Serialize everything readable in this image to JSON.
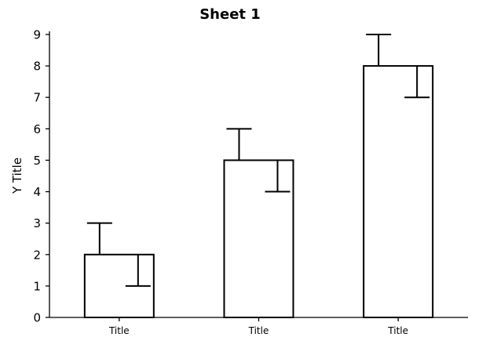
{
  "chart_data": {
    "type": "bar",
    "title": "Sheet 1",
    "xlabel": "",
    "ylabel": "Y Title",
    "categories": [
      "Title",
      "Title",
      "Title"
    ],
    "values": [
      2,
      5,
      8
    ],
    "error_upper": [
      3,
      6,
      9
    ],
    "error_lower": [
      1,
      4,
      7
    ],
    "ylim": [
      0,
      9
    ],
    "yticks": [
      "0",
      "1",
      "2",
      "3",
      "4",
      "5",
      "6",
      "7",
      "8",
      "9"
    ],
    "grid": false,
    "colors": {
      "bar_fill": "#ffffff",
      "bar_stroke": "#000000"
    }
  }
}
